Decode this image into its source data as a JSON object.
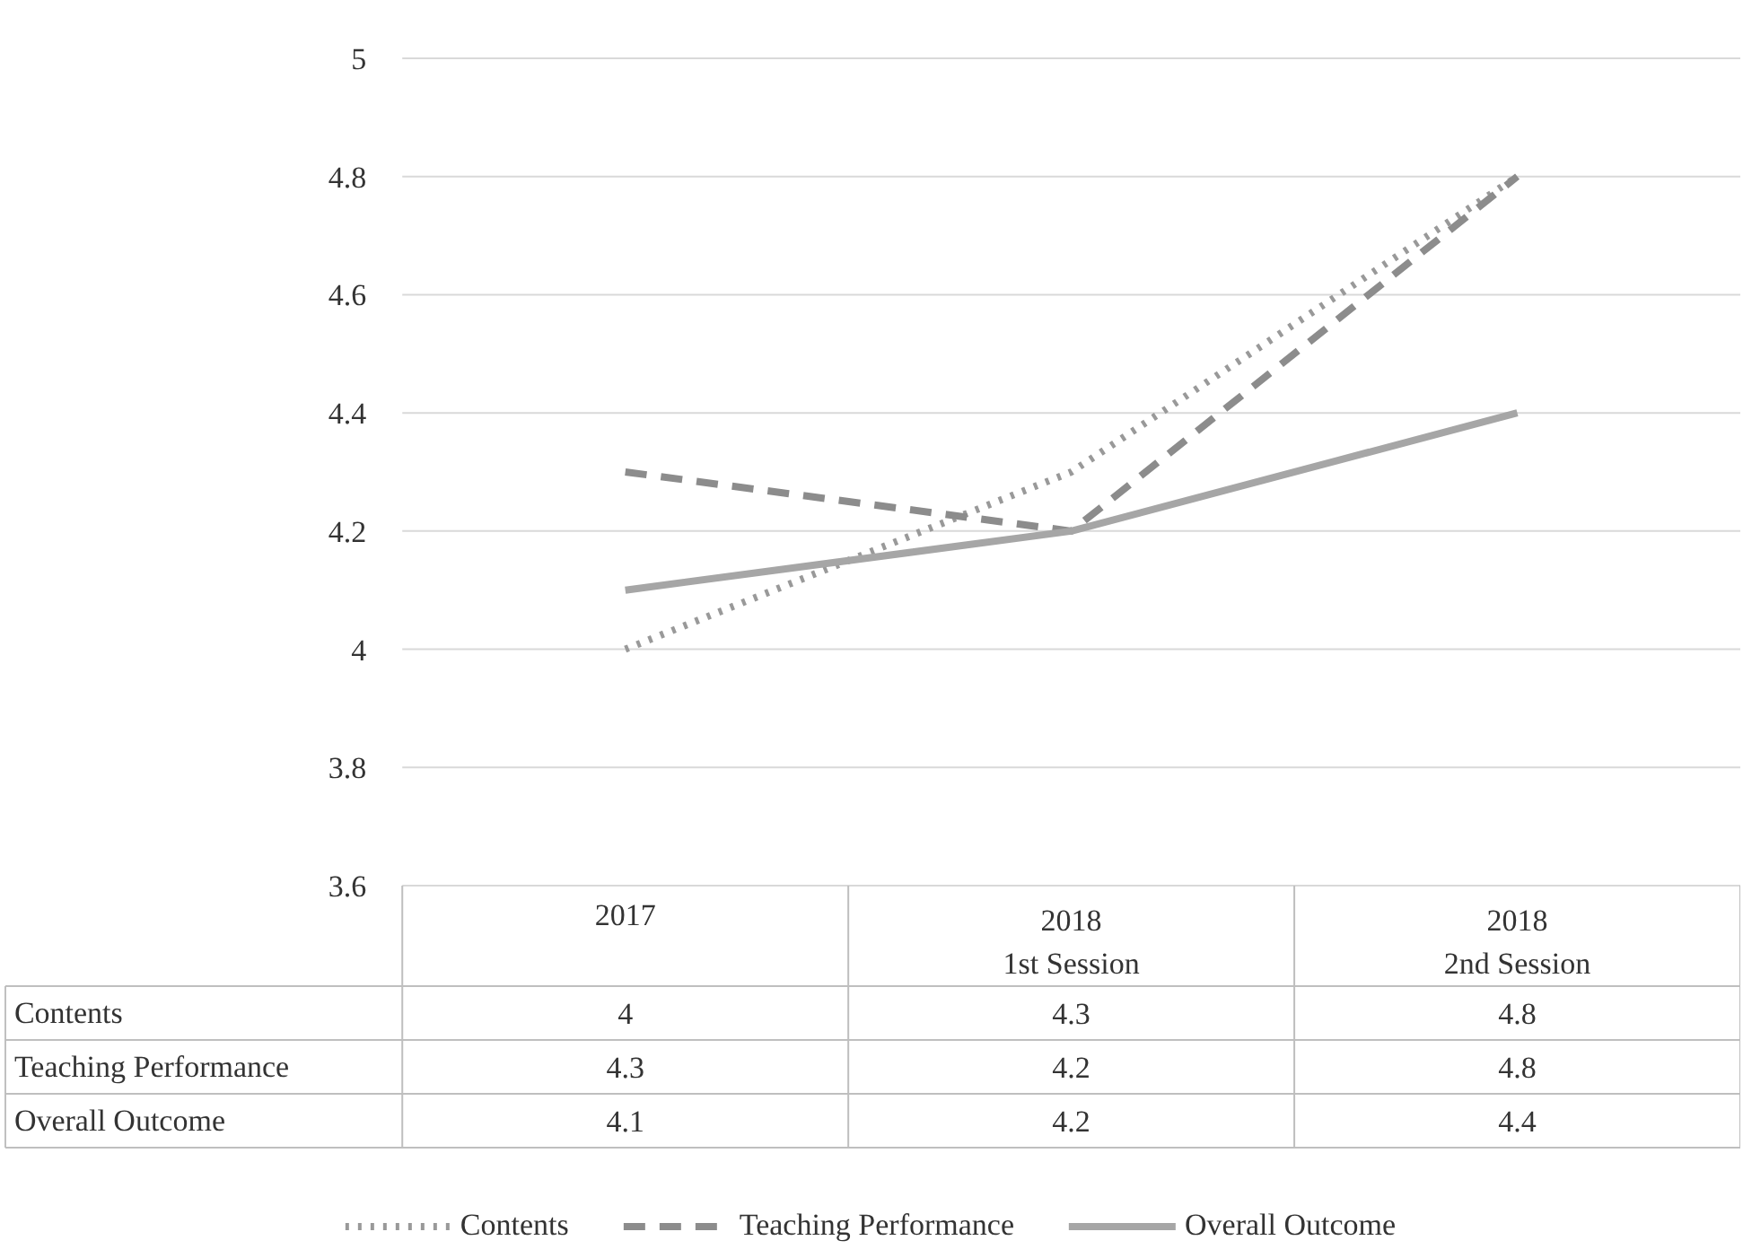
{
  "chart_data": {
    "type": "line",
    "categories": [
      "2017",
      "2018\n1st Session",
      "2018\n2nd Session"
    ],
    "series": [
      {
        "name": "Contents",
        "color": "#999999",
        "line_style": "dotted",
        "values": [
          4,
          4.3,
          4.8
        ]
      },
      {
        "name": "Teaching Performance",
        "color": "#8c8c8c",
        "line_style": "dashed",
        "values": [
          4.3,
          4.2,
          4.8
        ]
      },
      {
        "name": "Overall Outcome",
        "color": "#a6a6a6",
        "line_style": "solid",
        "values": [
          4.1,
          4.2,
          4.4
        ]
      }
    ],
    "ylim": [
      3.6,
      5
    ],
    "yticks": [
      3.6,
      3.8,
      4,
      4.2,
      4.4,
      4.6,
      4.8,
      5
    ],
    "grid": "y",
    "legend": "bottom",
    "data_labels": true,
    "marker": "none"
  }
}
